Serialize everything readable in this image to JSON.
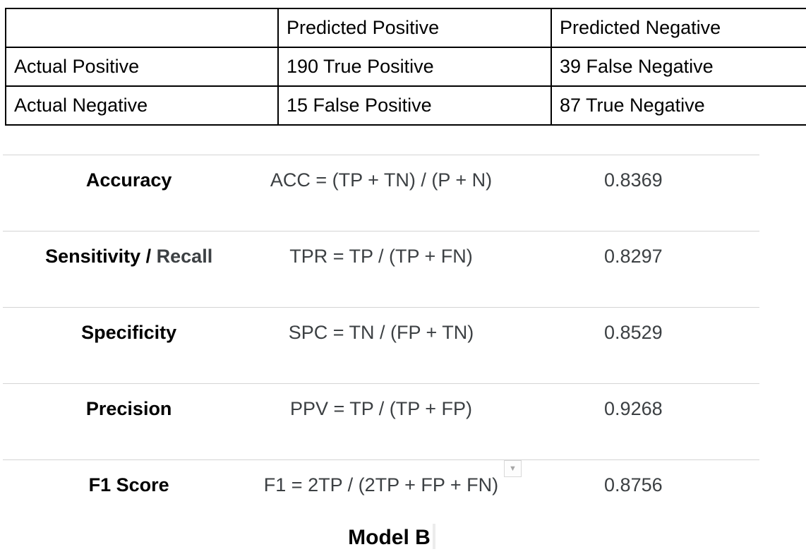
{
  "confusion_matrix": {
    "headers": [
      "",
      "Predicted Positive",
      "Predicted Negative"
    ],
    "rows": [
      {
        "row_header": "Actual Positive",
        "cells": [
          "190 True Positive",
          "39 False Negative"
        ]
      },
      {
        "row_header": "Actual Negative",
        "cells": [
          "15 False Positive",
          "87 True Negative"
        ]
      }
    ]
  },
  "metrics_table": {
    "rows": [
      {
        "label": "Accuracy",
        "formula": "ACC = (TP + TN) / (P + N)",
        "value": "0.8369"
      },
      {
        "label": "Sensitivity / ",
        "label_muted": "Recall",
        "formula": "TPR = TP / (TP + FN)",
        "value": "0.8297"
      },
      {
        "label": "Specificity",
        "formula": "SPC = TN / (FP + TN)",
        "value": "0.8529"
      },
      {
        "label": "Precision",
        "formula": "PPV = TP / (TP + FP)",
        "value": "0.9268"
      },
      {
        "label": "F1 Score",
        "formula": "F1 = 2TP / (2TP + FP + FN)",
        "value": "0.8756"
      }
    ]
  },
  "caption": {
    "text": "Model B"
  },
  "icons": {
    "dropdown": "▼"
  },
  "colors": {
    "table_border": "#000000",
    "divider": "#d4d4d4",
    "muted_text": "#3c4043",
    "chip_border": "#d8d8d8",
    "caret": "#ececec"
  }
}
